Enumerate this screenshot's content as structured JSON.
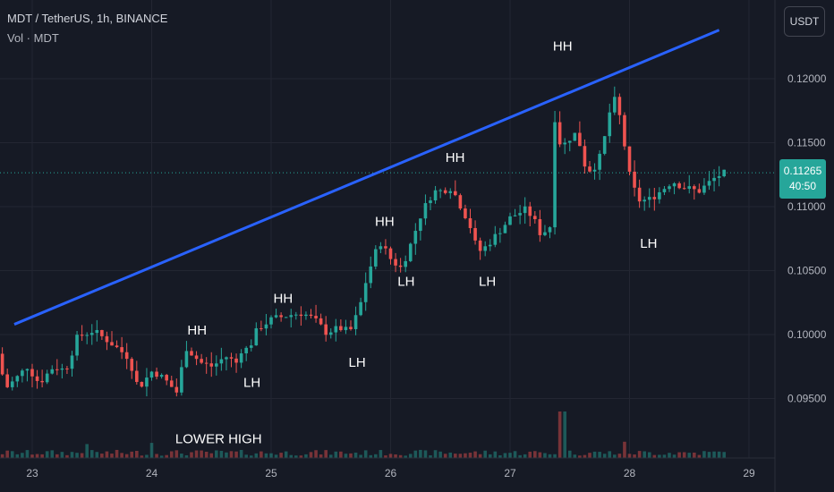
{
  "header": {
    "symbol_line": "MDT / TetherUS, 1h, BINANCE",
    "volume_line": "Vol · MDT"
  },
  "currency_button": "USDT",
  "price_tag": {
    "price": "0.11265",
    "countdown": "40:50"
  },
  "colors": {
    "background": "#161a25",
    "up": "#26a69a",
    "down": "#ef5350",
    "trendline": "#2962ff",
    "grid": "#232632"
  },
  "chart_data": {
    "type": "candlestick",
    "y_ticks": [
      "0.09500",
      "0.10000",
      "0.10500",
      "0.11000",
      "0.11500",
      "0.12000"
    ],
    "x_ticks": [
      "23",
      "24",
      "25",
      "26",
      "27",
      "28",
      "29"
    ],
    "ylim": [
      0.0915,
      0.1225
    ],
    "xlim": [
      22.75,
      29.0
    ],
    "trendline": [
      [
        22.85,
        0.1008
      ],
      [
        28.75,
        0.1238
      ]
    ],
    "annotations": [
      {
        "text": "HH",
        "x": 24.38,
        "y": 0.1
      },
      {
        "text": "LH",
        "x": 24.84,
        "y": 0.0959
      },
      {
        "text": "HH",
        "x": 25.1,
        "y": 0.1025
      },
      {
        "text": "LH",
        "x": 25.72,
        "y": 0.0975
      },
      {
        "text": "HH",
        "x": 25.95,
        "y": 0.1085
      },
      {
        "text": "LH",
        "x": 26.13,
        "y": 0.1038
      },
      {
        "text": "HH",
        "x": 26.54,
        "y": 0.1135
      },
      {
        "text": "LH",
        "x": 26.81,
        "y": 0.1038
      },
      {
        "text": "HH",
        "x": 27.44,
        "y": 0.1222
      },
      {
        "text": "LH",
        "x": 28.16,
        "y": 0.1068
      },
      {
        "text": "LOWER HIGH",
        "x": 24.56,
        "y": 0.0915
      }
    ],
    "keypoints": [
      [
        22.75,
        0.0985
      ],
      [
        22.82,
        0.0958
      ],
      [
        22.9,
        0.0965
      ],
      [
        23.0,
        0.0975
      ],
      [
        23.1,
        0.0962
      ],
      [
        23.22,
        0.0975
      ],
      [
        23.32,
        0.0972
      ],
      [
        23.42,
        0.0998
      ],
      [
        23.55,
        0.1003
      ],
      [
        23.68,
        0.0995
      ],
      [
        23.85,
        0.0982
      ],
      [
        23.93,
        0.0958
      ],
      [
        24.05,
        0.0972
      ],
      [
        24.15,
        0.0965
      ],
      [
        24.25,
        0.0955
      ],
      [
        24.33,
        0.099
      ],
      [
        24.45,
        0.0978
      ],
      [
        24.55,
        0.0975
      ],
      [
        24.66,
        0.0983
      ],
      [
        24.75,
        0.0978
      ],
      [
        24.8,
        0.099
      ],
      [
        24.85,
        0.0988
      ],
      [
        24.93,
        0.1005
      ],
      [
        25.05,
        0.1012
      ],
      [
        25.18,
        0.1015
      ],
      [
        25.3,
        0.1017
      ],
      [
        25.4,
        0.1012
      ],
      [
        25.5,
        0.1002
      ],
      [
        25.62,
        0.1005
      ],
      [
        25.7,
        0.1002
      ],
      [
        25.78,
        0.102
      ],
      [
        25.83,
        0.104
      ],
      [
        25.88,
        0.1055
      ],
      [
        25.95,
        0.1073
      ],
      [
        26.05,
        0.1058
      ],
      [
        26.13,
        0.1052
      ],
      [
        26.2,
        0.1068
      ],
      [
        26.3,
        0.1095
      ],
      [
        26.4,
        0.1112
      ],
      [
        26.45,
        0.1112
      ],
      [
        26.55,
        0.1115
      ],
      [
        26.62,
        0.1102
      ],
      [
        26.7,
        0.1087
      ],
      [
        26.76,
        0.1068
      ],
      [
        26.8,
        0.1065
      ],
      [
        26.9,
        0.1075
      ],
      [
        27.05,
        0.1092
      ],
      [
        27.18,
        0.1098
      ],
      [
        27.25,
        0.1088
      ],
      [
        27.3,
        0.1078
      ],
      [
        27.38,
        0.1085
      ],
      [
        27.41,
        0.1172
      ],
      [
        27.47,
        0.1145
      ],
      [
        27.52,
        0.1152
      ],
      [
        27.6,
        0.1158
      ],
      [
        27.68,
        0.1128
      ],
      [
        27.74,
        0.113
      ],
      [
        27.8,
        0.114
      ],
      [
        27.86,
        0.1165
      ],
      [
        27.9,
        0.1188
      ],
      [
        27.96,
        0.117
      ],
      [
        28.05,
        0.112
      ],
      [
        28.12,
        0.1105
      ],
      [
        28.2,
        0.1105
      ],
      [
        28.3,
        0.1112
      ],
      [
        28.4,
        0.112
      ],
      [
        28.5,
        0.1115
      ],
      [
        28.62,
        0.1112
      ],
      [
        28.75,
        0.1122
      ],
      [
        28.82,
        0.1126
      ]
    ],
    "volume_spikes": [
      [
        27.41,
        1.0
      ],
      [
        27.44,
        0.4
      ],
      [
        23.45,
        0.12
      ],
      [
        24.0,
        0.13
      ],
      [
        27.95,
        0.14
      ]
    ]
  }
}
